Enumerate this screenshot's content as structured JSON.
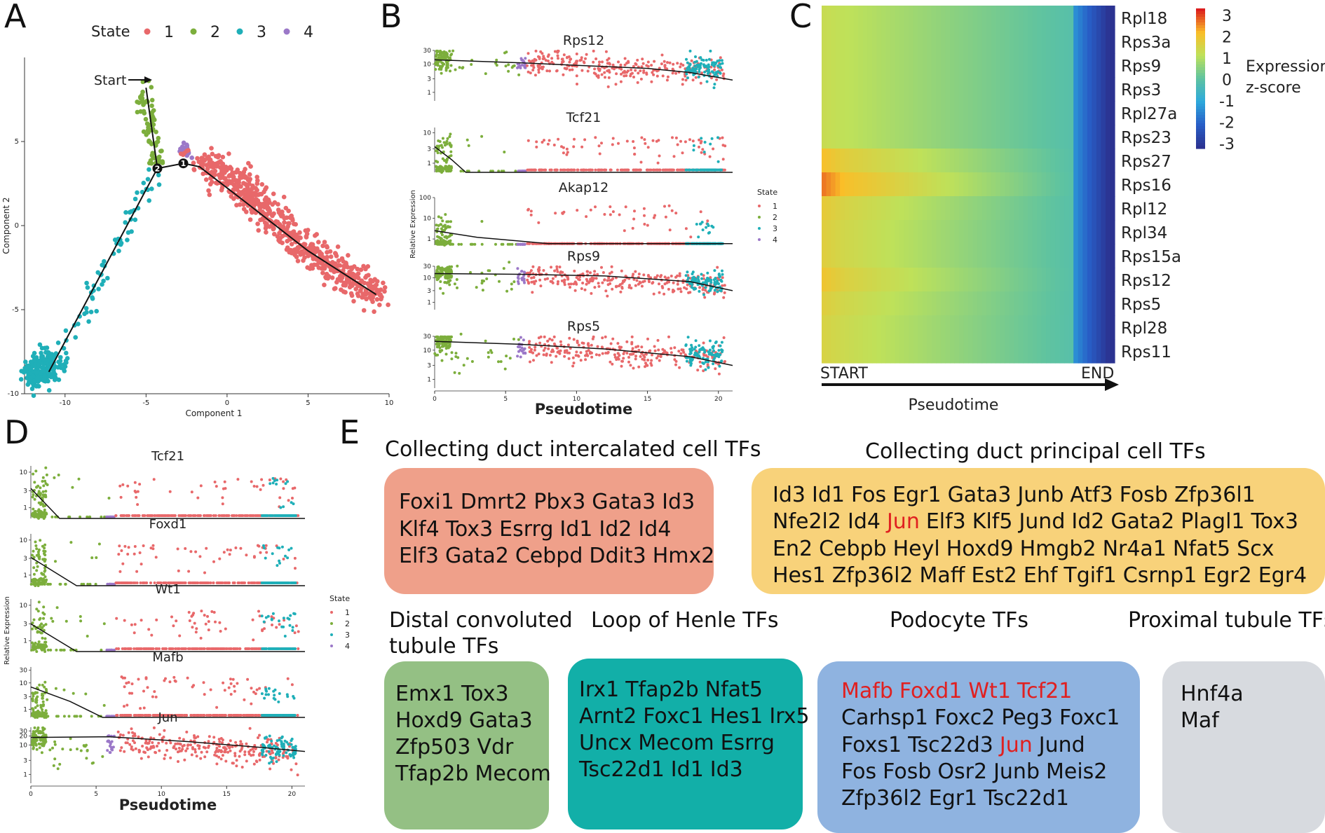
{
  "panels": {
    "A": "A",
    "B": "B",
    "C": "C",
    "D": "D",
    "E": "E"
  },
  "state_colors": {
    "1": "#E8686A",
    "2": "#7CAE3C",
    "3": "#1FAFB8",
    "4": "#9B78C8"
  },
  "highlight_color": "#E02020",
  "chart_data": [
    {
      "panel": "A",
      "type": "scatter",
      "title": "",
      "xlabel": "Component 1",
      "ylabel": "Component 2",
      "xlim": [
        -12.5,
        10
      ],
      "ylim": [
        -10,
        10
      ],
      "xticks": [
        -10,
        -5,
        0,
        5,
        10
      ],
      "yticks": [
        -10,
        -5,
        0,
        5
      ],
      "legend": {
        "title": "State",
        "entries": [
          "1",
          "2",
          "3",
          "4"
        ],
        "placement": "top"
      },
      "annotation": "Start",
      "branch_points": [
        "1",
        "2"
      ],
      "trajectory": [
        [
          -5,
          8.2
        ],
        [
          -4.3,
          3.4
        ],
        [
          -2.7,
          3.7
        ],
        [
          -1.7,
          3.5
        ],
        [
          1,
          1.5
        ],
        [
          5,
          -1.5
        ],
        [
          9.2,
          -4.1
        ],
        [
          -4.3,
          3.4
        ],
        [
          -11,
          -8.7
        ]
      ],
      "clusters": [
        {
          "state": "2",
          "path": [
            [
              -5.2,
              8.3
            ],
            [
              -4.3,
              3.4
            ]
          ],
          "n": 70,
          "spread": 0.25
        },
        {
          "state": "4",
          "path": [
            [
              -2.9,
              4.6
            ],
            [
              -2.4,
              4.3
            ]
          ],
          "n": 20,
          "spread": 0.18
        },
        {
          "state": "1",
          "path": [
            [
              -2.0,
              4.1
            ],
            [
              1,
              2.2
            ],
            [
              5,
              -1.5
            ],
            [
              9.3,
              -4.2
            ]
          ],
          "n": 650,
          "spread": 0.45
        },
        {
          "state": "3",
          "path": [
            [
              -4.4,
              3.2
            ],
            [
              -7,
              -1.5
            ],
            [
              -9.5,
              -6.5
            ]
          ],
          "n": 60,
          "spread": 0.3
        },
        {
          "state": "3",
          "path": [
            [
              -12,
              -8.9
            ],
            [
              -10.6,
              -8.2
            ]
          ],
          "n": 220,
          "spread": 0.45
        }
      ]
    },
    {
      "panel": "B",
      "type": "scatter",
      "xlabel": "Pseudotime",
      "ylabel": "Relative Expression",
      "xlim": [
        0,
        21
      ],
      "xticks": [
        0,
        5,
        10,
        15,
        20
      ],
      "legend": {
        "title": "State",
        "entries": [
          "1",
          "2",
          "3",
          "4"
        ],
        "placement": "right"
      },
      "genes": [
        {
          "name": "Rps12",
          "yticks": [
            "1",
            "3",
            "10",
            "30"
          ],
          "ymax": 30,
          "fit": [
            [
              0,
              14
            ],
            [
              6,
              11
            ],
            [
              10,
              9
            ],
            [
              15,
              7
            ],
            [
              18,
              5
            ],
            [
              21,
              2.7
            ]
          ],
          "kind": "ribo"
        },
        {
          "name": "Tcf21",
          "yticks": [
            "1",
            "3",
            "10"
          ],
          "ymax": 15,
          "fit": [
            [
              0,
              3.5
            ],
            [
              1.2,
              1.3
            ],
            [
              2.2,
              0.4
            ],
            [
              21,
              0.4
            ]
          ],
          "kind": "drop"
        },
        {
          "name": "Akap12",
          "yticks": [
            "1",
            "10",
            "100"
          ],
          "ymax": 100,
          "fit": [
            [
              0,
              2.5
            ],
            [
              3,
              1.2
            ],
            [
              8,
              0.6
            ],
            [
              21,
              0.6
            ]
          ],
          "kind": "drop"
        },
        {
          "name": "Rps9",
          "yticks": [
            "1",
            "3",
            "10",
            "30"
          ],
          "ymax": 30,
          "fit": [
            [
              0,
              15
            ],
            [
              6,
              14
            ],
            [
              12,
              12
            ],
            [
              18,
              7
            ],
            [
              21,
              3
            ]
          ],
          "kind": "ribo"
        },
        {
          "name": "Rps5",
          "yticks": [
            "1",
            "3",
            "10",
            "30"
          ],
          "ymax": 30,
          "fit": [
            [
              0,
              20
            ],
            [
              6,
              16
            ],
            [
              12,
              11
            ],
            [
              18,
              6
            ],
            [
              21,
              3
            ]
          ],
          "kind": "ribo"
        }
      ]
    },
    {
      "panel": "C",
      "type": "heatmap",
      "xlabel": "Pseudotime",
      "x_start_label": "START",
      "x_end_label": "END",
      "colorbar_label": [
        "Expression",
        "z-score"
      ],
      "colorbar_ticks": [
        "3",
        "2",
        "1",
        "0",
        "-1",
        "-2",
        "-3"
      ],
      "colorbar_range": [
        -3,
        3
      ],
      "genes": [
        "Rpl18",
        "Rps3a",
        "Rps9",
        "Rps3",
        "Rpl27a",
        "Rps23",
        "Rps27",
        "Rps16",
        "Rpl12",
        "Rpl34",
        "Rps15a",
        "Rps12",
        "Rps5",
        "Rpl28",
        "Rps11"
      ],
      "row_peak": [
        0.8,
        0.8,
        0.8,
        0.8,
        0.8,
        0.8,
        1.4,
        1.8,
        1.2,
        1.1,
        1.1,
        1.3,
        1.1,
        1.0,
        1.0
      ]
    },
    {
      "panel": "D",
      "type": "scatter",
      "xlabel": "Pseudotime",
      "ylabel": "Relative Expression",
      "xlim": [
        0,
        21
      ],
      "xticks": [
        0,
        5,
        10,
        15,
        20
      ],
      "legend": {
        "title": "State",
        "entries": [
          "1",
          "2",
          "3",
          "4"
        ],
        "placement": "right"
      },
      "genes": [
        {
          "name": "Tcf21",
          "yticks": [
            "1",
            "3",
            "10"
          ],
          "ymax": 15,
          "fit": [
            [
              0,
              3.5
            ],
            [
              2.2,
              0.5
            ],
            [
              21,
              0.5
            ]
          ],
          "kind": "drop"
        },
        {
          "name": "Foxd1",
          "yticks": [
            "1",
            "3",
            "10"
          ],
          "ymax": 15,
          "fit": [
            [
              0,
              3.2
            ],
            [
              3.5,
              0.5
            ],
            [
              21,
              0.5
            ]
          ],
          "kind": "drop"
        },
        {
          "name": "Wt1",
          "yticks": [
            "1",
            "3",
            "10"
          ],
          "ymax": 15,
          "fit": [
            [
              0,
              3
            ],
            [
              3.5,
              0.5
            ],
            [
              21,
              0.5
            ]
          ],
          "kind": "drop"
        },
        {
          "name": "Mafb",
          "yticks": [
            "1",
            "3",
            "10",
            "30"
          ],
          "ymax": 40,
          "fit": [
            [
              0,
              7
            ],
            [
              3,
              2
            ],
            [
              5.5,
              0.5
            ],
            [
              21,
              0.5
            ]
          ],
          "kind": "drop"
        },
        {
          "name": "Jun",
          "yticks": [
            "1",
            "3",
            "10",
            "20",
            "30"
          ],
          "ymax": 40,
          "fit": [
            [
              0,
              18
            ],
            [
              6,
              19
            ],
            [
              12,
              13
            ],
            [
              18,
              8
            ],
            [
              21,
              6
            ]
          ],
          "kind": "ribo"
        }
      ]
    }
  ],
  "tf_groups": [
    {
      "heading": [
        "Collecting duct intercalated cell TFs"
      ],
      "color": "#EFA08A",
      "lines": [
        [
          {
            "t": "Foxi1"
          },
          {
            "t": "Dmrt2"
          },
          {
            "t": "Pbx3"
          },
          {
            "t": "Gata3"
          },
          {
            "t": "Id3"
          }
        ],
        [
          {
            "t": "Klf4"
          },
          {
            "t": "Tox3"
          },
          {
            "t": "Esrrg"
          },
          {
            "t": "Id1"
          },
          {
            "t": "Id2"
          },
          {
            "t": "Id4"
          }
        ],
        [
          {
            "t": "Elf3"
          },
          {
            "t": "Gata2"
          },
          {
            "t": "Cebpd"
          },
          {
            "t": "Ddit3"
          },
          {
            "t": "Hmx2"
          }
        ]
      ]
    },
    {
      "heading": [
        "Collecting duct principal cell TFs"
      ],
      "color": "#F8D27A",
      "lines": [
        [
          {
            "t": "Id3"
          },
          {
            "t": "Id1"
          },
          {
            "t": "Fos"
          },
          {
            "t": "Egr1"
          },
          {
            "t": "Gata3"
          },
          {
            "t": "Junb"
          },
          {
            "t": "Atf3"
          },
          {
            "t": "Fosb"
          },
          {
            "t": "Zfp36l1"
          }
        ],
        [
          {
            "t": "Nfe2l2"
          },
          {
            "t": "Id4"
          },
          {
            "t": "Jun",
            "hl": true
          },
          {
            "t": "Elf3"
          },
          {
            "t": "Klf5"
          },
          {
            "t": "Jund"
          },
          {
            "t": "Id2"
          },
          {
            "t": "Gata2"
          },
          {
            "t": "Plagl1"
          },
          {
            "t": "Tox3"
          }
        ],
        [
          {
            "t": "En2"
          },
          {
            "t": "Cebpb"
          },
          {
            "t": "Heyl"
          },
          {
            "t": "Hoxd9"
          },
          {
            "t": "Hmgb2"
          },
          {
            "t": "Nr4a1"
          },
          {
            "t": "Nfat5"
          },
          {
            "t": "Scx"
          }
        ],
        [
          {
            "t": "Hes1"
          },
          {
            "t": "Zfp36l2"
          },
          {
            "t": "Maff"
          },
          {
            "t": "Est2"
          },
          {
            "t": "Ehf"
          },
          {
            "t": "Tgif1"
          },
          {
            "t": "Csrnp1"
          },
          {
            "t": "Egr2"
          },
          {
            "t": "Egr4"
          }
        ]
      ]
    },
    {
      "heading": [
        "Distal convoluted",
        "tubule TFs"
      ],
      "color": "#94C084",
      "lines": [
        [
          {
            "t": "Emx1"
          },
          {
            "t": "Tox3"
          }
        ],
        [
          {
            "t": "Hoxd9"
          },
          {
            "t": "Gata3"
          }
        ],
        [
          {
            "t": "Zfp503"
          },
          {
            "t": "Vdr"
          }
        ],
        [
          {
            "t": "Tfap2b"
          },
          {
            "t": "Mecom"
          }
        ]
      ]
    },
    {
      "heading": [
        "Loop of Henle TFs"
      ],
      "color": "#12AFA8",
      "lines": [
        [
          {
            "t": "Irx1"
          },
          {
            "t": "Tfap2b"
          },
          {
            "t": "Nfat5"
          }
        ],
        [
          {
            "t": "Arnt2"
          },
          {
            "t": "Foxc1"
          },
          {
            "t": "Hes1"
          },
          {
            "t": "Irx5"
          }
        ],
        [
          {
            "t": "Uncx"
          },
          {
            "t": "Mecom"
          },
          {
            "t": "Esrrg"
          }
        ],
        [
          {
            "t": "Tsc22d1"
          },
          {
            "t": "Id1"
          },
          {
            "t": "Id3"
          }
        ]
      ]
    },
    {
      "heading": [
        "Podocyte TFs"
      ],
      "color": "#8FB3E0",
      "lines": [
        [
          {
            "t": "Mafb",
            "hl": true
          },
          {
            "t": "Foxd1",
            "hl": true
          },
          {
            "t": "Wt1",
            "hl": true
          },
          {
            "t": "Tcf21",
            "hl": true
          }
        ],
        [
          {
            "t": "Carhsp1"
          },
          {
            "t": "Foxc2"
          },
          {
            "t": "Peg3"
          },
          {
            "t": "Foxc1"
          }
        ],
        [
          {
            "t": "Foxs1"
          },
          {
            "t": "Tsc22d3"
          },
          {
            "t": "Jun",
            "hl": true
          },
          {
            "t": "Jund"
          }
        ],
        [
          {
            "t": "Fos"
          },
          {
            "t": "Fosb"
          },
          {
            "t": "Osr2"
          },
          {
            "t": "Junb"
          },
          {
            "t": "Meis2"
          }
        ],
        [
          {
            "t": "Zfp36l2"
          },
          {
            "t": "Egr1"
          },
          {
            "t": "Tsc22d1"
          }
        ]
      ]
    },
    {
      "heading": [
        "Proximal tubule TFs"
      ],
      "color": "#D7DADF",
      "lines": [
        [
          {
            "t": "Hnf4a"
          }
        ],
        [
          {
            "t": "Maf"
          }
        ]
      ]
    }
  ]
}
